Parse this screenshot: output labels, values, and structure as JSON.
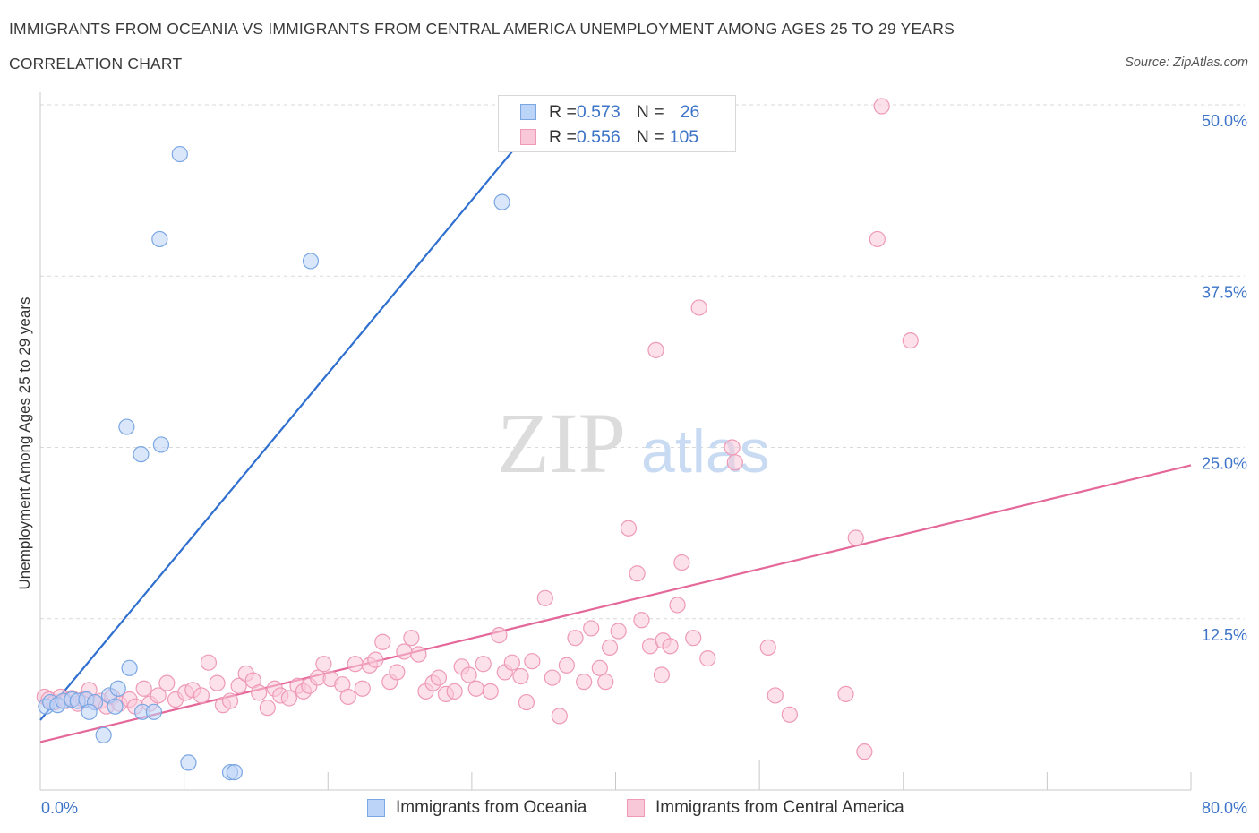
{
  "header": {
    "title": "IMMIGRANTS FROM OCEANIA VS IMMIGRANTS FROM CENTRAL AMERICA UNEMPLOYMENT AMONG AGES 25 TO 29 YEARS",
    "subtitle": "CORRELATION CHART",
    "source": "Source: ZipAtlas.com"
  },
  "watermark": {
    "zip": "ZIP",
    "atlas": "atlas"
  },
  "legend": {
    "rows": [
      {
        "r_label": "R = ",
        "r_value": "0.573",
        "n_label": "N = ",
        "n_value": "26"
      },
      {
        "r_label": "R = ",
        "r_value": "0.556",
        "n_label": "N = ",
        "n_value": "105"
      }
    ]
  },
  "colors": {
    "oceania_fill": "#bcd4f7",
    "oceania_stroke": "#7aa6e3",
    "oceania_line": "#2f6fcf",
    "central_fill": "#f9c8d8",
    "central_stroke": "#ee9ab6",
    "central_line": "#e4689a",
    "grid": "#d9d9d9",
    "axis_text": "#3d74c7"
  },
  "chart_data": {
    "type": "scatter",
    "title": "IMMIGRANTS FROM OCEANIA VS IMMIGRANTS FROM CENTRAL AMERICA UNEMPLOYMENT AMONG AGES 25 TO 29 YEARS",
    "xlabel": "",
    "ylabel": "Unemployment Among Ages 25 to 29 years",
    "xlim": [
      0,
      80
    ],
    "ylim": [
      0,
      50
    ],
    "x_tick_labels": [
      "0.0%",
      "80.0%"
    ],
    "y_ticks": [
      12.5,
      25,
      37.5,
      50
    ],
    "y_tick_labels": [
      "12.5%",
      "25.0%",
      "37.5%",
      "50.0%"
    ],
    "series": [
      {
        "name": "Immigrants from Oceania",
        "r": 0.573,
        "n": 26,
        "trend": [
          [
            0,
            5.1
          ],
          [
            35.5,
            50
          ]
        ],
        "points": [
          [
            0.4,
            6.1
          ],
          [
            0.7,
            6.4
          ],
          [
            1.2,
            6.2
          ],
          [
            1.6,
            6.5
          ],
          [
            2.2,
            6.6
          ],
          [
            2.6,
            6.5
          ],
          [
            3.2,
            6.6
          ],
          [
            3.8,
            6.4
          ],
          [
            3.4,
            5.7
          ],
          [
            4.4,
            4.0
          ],
          [
            4.8,
            6.9
          ],
          [
            5.2,
            6.1
          ],
          [
            5.4,
            7.4
          ],
          [
            6.2,
            8.9
          ],
          [
            7.1,
            5.7
          ],
          [
            7.9,
            5.7
          ],
          [
            6.0,
            26.5
          ],
          [
            7.0,
            24.5
          ],
          [
            8.4,
            25.2
          ],
          [
            8.3,
            40.2
          ],
          [
            9.7,
            46.4
          ],
          [
            10.3,
            2.0
          ],
          [
            13.2,
            1.3
          ],
          [
            13.5,
            1.3
          ],
          [
            18.8,
            38.6
          ],
          [
            32.1,
            42.9
          ]
        ]
      },
      {
        "name": "Immigrants from Central America",
        "r": 0.556,
        "n": 105,
        "trend": [
          [
            0,
            3.5
          ],
          [
            80,
            23.7
          ]
        ],
        "points": [
          [
            0.3,
            6.8
          ],
          [
            0.6,
            6.6
          ],
          [
            1.0,
            6.4
          ],
          [
            1.4,
            6.8
          ],
          [
            1.8,
            6.5
          ],
          [
            2.2,
            6.7
          ],
          [
            2.6,
            6.3
          ],
          [
            3.0,
            6.6
          ],
          [
            3.4,
            7.3
          ],
          [
            3.8,
            6.4
          ],
          [
            4.2,
            6.5
          ],
          [
            4.6,
            6.1
          ],
          [
            5.0,
            6.8
          ],
          [
            5.5,
            6.3
          ],
          [
            6.2,
            6.6
          ],
          [
            6.6,
            6.1
          ],
          [
            7.2,
            7.4
          ],
          [
            7.6,
            6.3
          ],
          [
            8.2,
            6.9
          ],
          [
            8.8,
            7.8
          ],
          [
            9.4,
            6.6
          ],
          [
            10.1,
            7.1
          ],
          [
            10.6,
            7.3
          ],
          [
            11.2,
            6.9
          ],
          [
            11.7,
            9.3
          ],
          [
            12.3,
            7.8
          ],
          [
            12.7,
            6.2
          ],
          [
            13.2,
            6.5
          ],
          [
            13.8,
            7.6
          ],
          [
            14.3,
            8.5
          ],
          [
            14.8,
            8.0
          ],
          [
            15.2,
            7.1
          ],
          [
            15.8,
            6.0
          ],
          [
            16.3,
            7.4
          ],
          [
            16.7,
            6.9
          ],
          [
            17.3,
            6.7
          ],
          [
            17.9,
            7.6
          ],
          [
            18.3,
            7.2
          ],
          [
            18.7,
            7.6
          ],
          [
            19.3,
            8.2
          ],
          [
            19.7,
            9.2
          ],
          [
            20.2,
            8.1
          ],
          [
            21.0,
            7.7
          ],
          [
            21.4,
            6.8
          ],
          [
            21.9,
            9.2
          ],
          [
            22.4,
            7.4
          ],
          [
            22.9,
            9.1
          ],
          [
            23.3,
            9.5
          ],
          [
            23.8,
            10.8
          ],
          [
            24.3,
            7.9
          ],
          [
            24.8,
            8.6
          ],
          [
            25.3,
            10.1
          ],
          [
            25.8,
            11.1
          ],
          [
            26.3,
            9.9
          ],
          [
            26.8,
            7.2
          ],
          [
            27.3,
            7.8
          ],
          [
            27.7,
            8.2
          ],
          [
            28.2,
            7.0
          ],
          [
            28.8,
            7.2
          ],
          [
            29.3,
            9.0
          ],
          [
            29.8,
            8.4
          ],
          [
            30.3,
            7.4
          ],
          [
            30.8,
            9.2
          ],
          [
            31.3,
            7.2
          ],
          [
            31.9,
            11.3
          ],
          [
            32.3,
            8.6
          ],
          [
            32.8,
            9.3
          ],
          [
            33.4,
            8.3
          ],
          [
            33.8,
            6.4
          ],
          [
            34.2,
            9.4
          ],
          [
            35.1,
            14.0
          ],
          [
            35.6,
            8.2
          ],
          [
            36.1,
            5.4
          ],
          [
            36.6,
            9.1
          ],
          [
            37.2,
            11.1
          ],
          [
            37.8,
            7.9
          ],
          [
            38.3,
            11.8
          ],
          [
            38.9,
            8.9
          ],
          [
            39.3,
            7.9
          ],
          [
            39.6,
            10.4
          ],
          [
            40.2,
            11.6
          ],
          [
            40.9,
            19.1
          ],
          [
            41.8,
            12.4
          ],
          [
            41.5,
            15.8
          ],
          [
            42.4,
            10.5
          ],
          [
            42.8,
            32.1
          ],
          [
            43.2,
            8.4
          ],
          [
            43.3,
            10.9
          ],
          [
            43.8,
            10.5
          ],
          [
            44.3,
            13.5
          ],
          [
            44.6,
            16.6
          ],
          [
            45.4,
            11.1
          ],
          [
            45.8,
            35.2
          ],
          [
            46.4,
            9.6
          ],
          [
            48.1,
            25.0
          ],
          [
            48.3,
            23.9
          ],
          [
            50.6,
            10.4
          ],
          [
            51.1,
            6.9
          ],
          [
            52.1,
            5.5
          ],
          [
            56.0,
            7.0
          ],
          [
            56.7,
            18.4
          ],
          [
            57.3,
            2.8
          ],
          [
            58.2,
            40.2
          ],
          [
            58.5,
            49.9
          ],
          [
            60.5,
            32.8
          ]
        ]
      }
    ]
  },
  "bottom_legend": [
    {
      "label": "Immigrants from Oceania"
    },
    {
      "label": "Immigrants from Central America"
    }
  ]
}
